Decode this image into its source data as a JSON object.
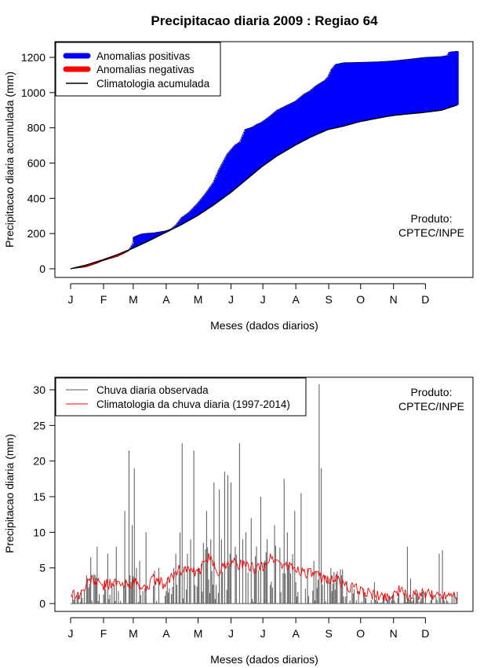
{
  "title": "Precipitacao diaria 2009 : Regiao 64",
  "months": [
    "J",
    "F",
    "M",
    "A",
    "M",
    "J",
    "J",
    "A",
    "S",
    "O",
    "N",
    "D"
  ],
  "credit": {
    "line1": "Produto:",
    "line2": "CPTEC/INPE"
  },
  "chart_data": [
    {
      "type": "area",
      "title": "Precipitacao diaria 2009 : Regiao 64",
      "xlabel": "Meses (dados diarios)",
      "ylabel": "Precipitacao diaria acumulada (mm)",
      "xlim": [
        1,
        365
      ],
      "ylim": [
        0,
        1250
      ],
      "yticks": [
        0,
        200,
        400,
        600,
        800,
        1000,
        1200
      ],
      "legend": {
        "position": "top-left",
        "entries": [
          {
            "label": "Anomalias positivas",
            "color": "#0000ff"
          },
          {
            "label": "Anomalias negativas",
            "color": "#ff0000"
          },
          {
            "label": "Climatologia acumulada",
            "color": "#000000"
          }
        ]
      },
      "climatology_cumulative": {
        "x": [
          1,
          15,
          31,
          45,
          59,
          75,
          90,
          105,
          120,
          135,
          151,
          165,
          181,
          195,
          212,
          226,
          243,
          258,
          273,
          290,
          304,
          320,
          334,
          350,
          365
        ],
        "y": [
          0,
          20,
          50,
          80,
          115,
          160,
          205,
          250,
          300,
          360,
          430,
          500,
          580,
          640,
          700,
          745,
          790,
          810,
          835,
          855,
          870,
          880,
          888,
          900,
          930
        ]
      },
      "observed_cumulative": {
        "x": [
          1,
          15,
          25,
          31,
          45,
          55,
          59,
          60,
          66,
          70,
          80,
          90,
          95,
          100,
          105,
          112,
          120,
          128,
          135,
          140,
          148,
          155,
          160,
          165,
          172,
          176,
          180,
          187,
          195,
          205,
          212,
          220,
          226,
          232,
          240,
          243,
          246,
          250,
          258,
          273,
          290,
          304,
          320,
          334,
          350,
          355,
          357,
          365
        ],
        "y": [
          0,
          10,
          30,
          45,
          70,
          100,
          140,
          180,
          195,
          200,
          205,
          215,
          225,
          250,
          290,
          320,
          370,
          430,
          490,
          560,
          650,
          700,
          720,
          790,
          805,
          820,
          830,
          860,
          900,
          930,
          950,
          990,
          1010,
          1040,
          1070,
          1090,
          1130,
          1160,
          1170,
          1172,
          1175,
          1180,
          1190,
          1200,
          1205,
          1210,
          1230,
          1235
        ]
      }
    },
    {
      "type": "bar",
      "xlabel": "Meses (dados diarios)",
      "ylabel": "Precipitacao diaria (mm)",
      "xlim": [
        1,
        365
      ],
      "ylim": [
        0,
        31
      ],
      "yticks": [
        0,
        5,
        10,
        15,
        20,
        25,
        30
      ],
      "legend": {
        "position": "top-left",
        "entries": [
          {
            "label": "Chuva diaria observada",
            "color": "#555555"
          },
          {
            "label": "Climatologia da chuva diaria (1997-2014)",
            "color": "#ff0000"
          }
        ]
      },
      "observed_daily_peaks": {
        "day": [
          16,
          20,
          26,
          36,
          44,
          52,
          56,
          59,
          61,
          63,
          66,
          72,
          84,
          100,
          104,
          106,
          111,
          114,
          117,
          121,
          126,
          129,
          133,
          136,
          141,
          143,
          146,
          149,
          152,
          156,
          160,
          163,
          166,
          171,
          176,
          180,
          186,
          193,
          202,
          205,
          212,
          218,
          224,
          230,
          235,
          237,
          240,
          246,
          255,
          257,
          287,
          318,
          321,
          348,
          351
        ],
        "mm": [
          4,
          6.5,
          8,
          7,
          8,
          13,
          21.5,
          11,
          19,
          5,
          6,
          10,
          5,
          7,
          10,
          22.5,
          7,
          9,
          21.5,
          5,
          8.5,
          13,
          9,
          17,
          16,
          9,
          18.5,
          18,
          17,
          8,
          22.5,
          9,
          10,
          12,
          8,
          15,
          9,
          11,
          17.5,
          10,
          13,
          15.5,
          5,
          6,
          30.8,
          19,
          4,
          5,
          4.8,
          4.8,
          3,
          8,
          3.5,
          7,
          7.5
        ]
      },
      "climatology_daily": {
        "x": [
          1,
          10,
          20,
          30,
          40,
          50,
          60,
          70,
          80,
          90,
          100,
          110,
          120,
          130,
          140,
          150,
          160,
          170,
          180,
          190,
          200,
          210,
          220,
          230,
          240,
          250,
          260,
          270,
          280,
          290,
          300,
          310,
          320,
          330,
          340,
          350,
          360,
          365
        ],
        "y": [
          1.5,
          1.2,
          3.5,
          2.5,
          3,
          2.5,
          3,
          2,
          3.5,
          2.5,
          4.5,
          5,
          4,
          6.5,
          4.5,
          6,
          5.5,
          5,
          5,
          6.5,
          5.5,
          5,
          4.5,
          4,
          3.5,
          3.5,
          2.5,
          2,
          1.5,
          1,
          1,
          1.8,
          1,
          1.3,
          1.2,
          1.2,
          1.5,
          1.3
        ]
      }
    }
  ]
}
